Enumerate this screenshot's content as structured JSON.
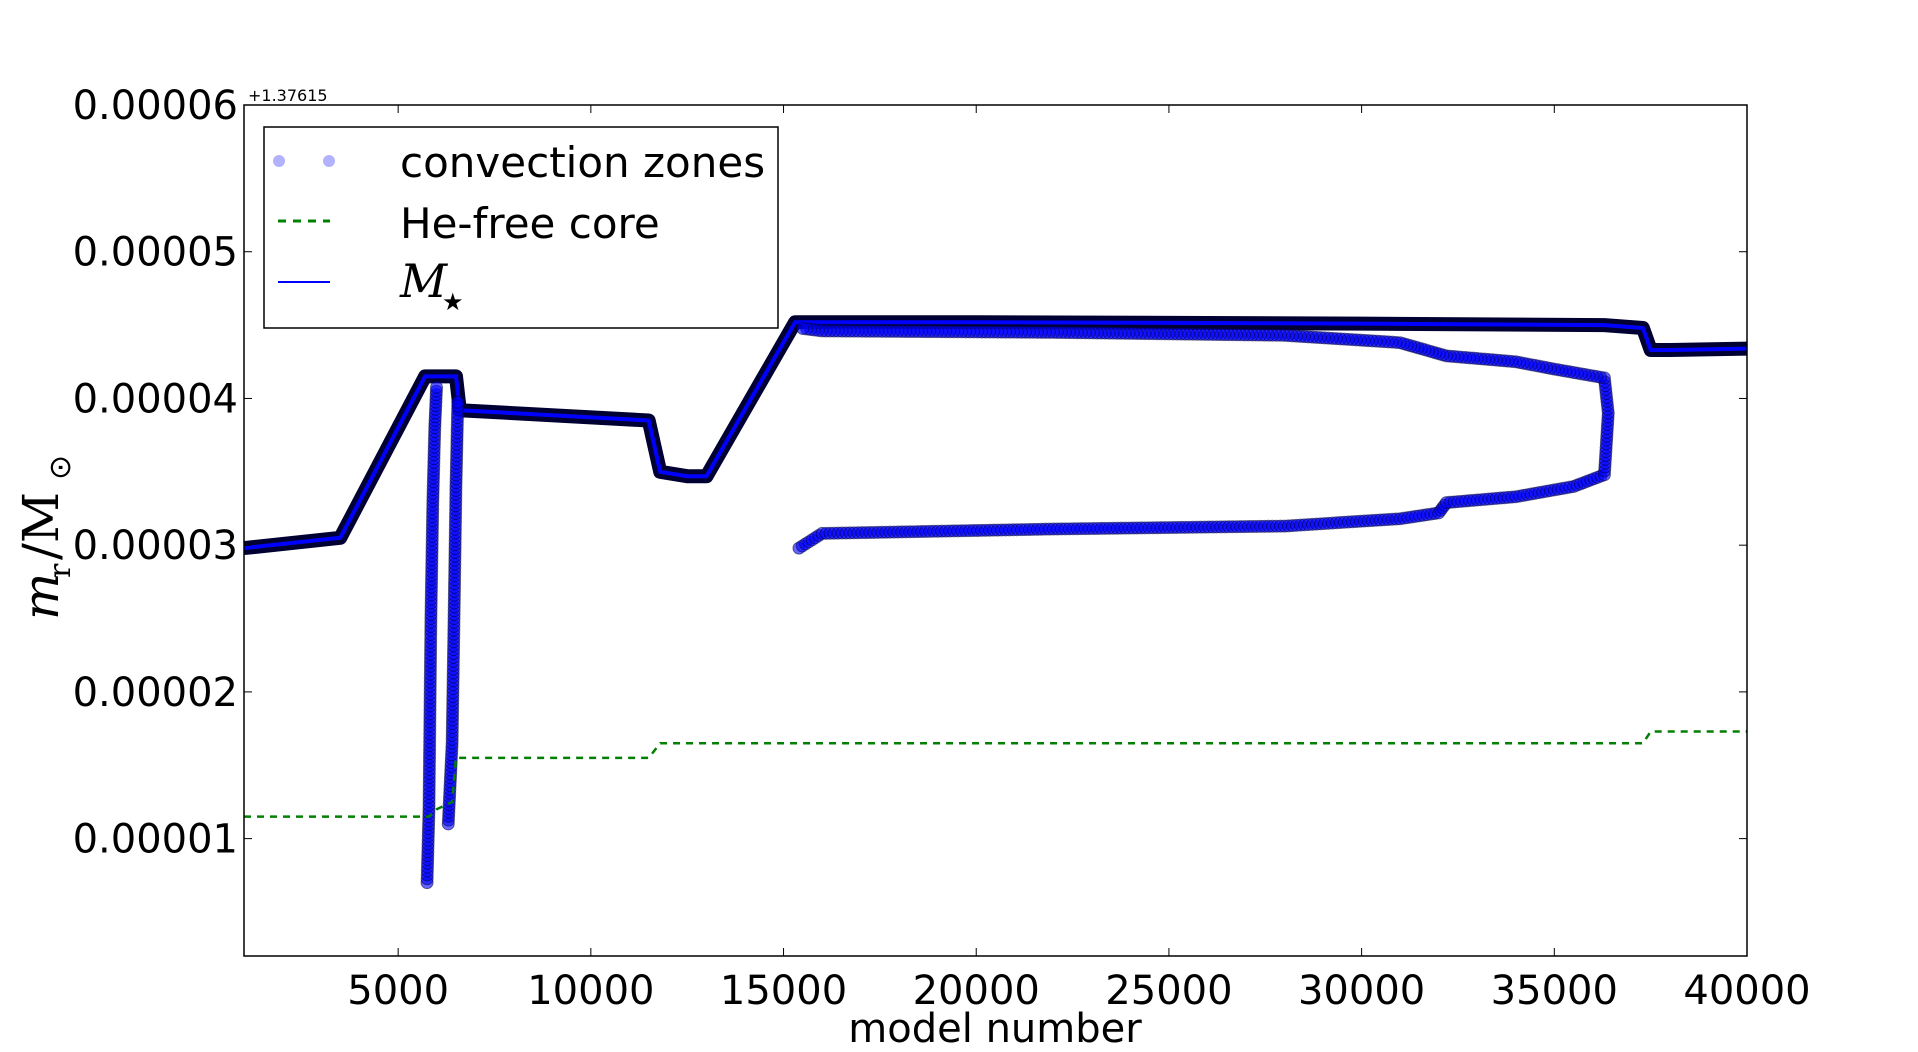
{
  "chart_data": {
    "type": "line",
    "title": "",
    "xlabel": "model number",
    "ylabel_main": "m",
    "ylabel_sub": "r",
    "ylabel_den": "/M",
    "ylabel_sun": "⊙",
    "offset_text": "+1.37615",
    "xlim": [
      1000,
      40000
    ],
    "ylim": [
      2e-06,
      6e-05
    ],
    "xticks": [
      5000,
      10000,
      15000,
      20000,
      25000,
      30000,
      35000,
      40000
    ],
    "xtick_labels": [
      "5000",
      "10000",
      "15000",
      "20000",
      "25000",
      "30000",
      "35000",
      "40000"
    ],
    "yticks": [
      1e-05,
      2e-05,
      3e-05,
      4e-05,
      5e-05,
      6e-05
    ],
    "ytick_labels": [
      "0.00001",
      "0.00002",
      "0.00003",
      "0.00004",
      "0.00005",
      "0.00006"
    ],
    "legend": {
      "placement": "top-left",
      "entries": [
        "convection zones",
        "He-free core",
        "M",
        "★"
      ]
    },
    "colors": {
      "conv": "#0000ff",
      "conv_edge": "#000033",
      "he": "#008000",
      "mstar": "#0000ff"
    },
    "series": [
      {
        "name": "M_star",
        "style": "solid",
        "x": [
          1000,
          3500,
          5700,
          6500,
          6600,
          11500,
          11800,
          12500,
          13000,
          15300,
          20000,
          30000,
          36300,
          37300,
          37500,
          38000,
          40000
        ],
        "y": [
          2.98e-05,
          3.05e-05,
          4.15e-05,
          4.15e-05,
          3.92e-05,
          3.85e-05,
          3.5e-05,
          3.47e-05,
          3.47e-05,
          4.52e-05,
          4.52e-05,
          4.51e-05,
          4.5e-05,
          4.48e-05,
          4.33e-05,
          4.33e-05,
          4.34e-05
        ]
      },
      {
        "name": "convection zones (outer boundary)",
        "style": "markers",
        "x": [
          15400,
          16000,
          22000,
          28000,
          31000,
          32000,
          32200,
          34000,
          35500,
          36300,
          36400,
          36300,
          35000,
          34000,
          32200,
          31000,
          28000,
          22000,
          16000,
          15400
        ],
        "y": [
          2.98e-05,
          3.08e-05,
          3.11e-05,
          3.13e-05,
          3.18e-05,
          3.22e-05,
          3.29e-05,
          3.33e-05,
          3.4e-05,
          3.48e-05,
          3.9e-05,
          4.14e-05,
          4.2e-05,
          4.25e-05,
          4.29e-05,
          4.38e-05,
          4.43e-05,
          4.45e-05,
          4.46e-05,
          4.48e-05
        ]
      },
      {
        "name": "convection zones (spike 1)",
        "style": "markers",
        "x": [
          5750,
          5800,
          5850,
          5900,
          5950,
          6000
        ],
        "y": [
          7e-06,
          1.2e-05,
          2.5e-05,
          3.3e-05,
          3.8e-05,
          4.1e-05
        ]
      },
      {
        "name": "convection zones (spike 2)",
        "style": "markers",
        "x": [
          6300,
          6400,
          6450,
          6500,
          6550
        ],
        "y": [
          1.1e-05,
          1.65e-05,
          2.5e-05,
          3.4e-05,
          4e-05
        ]
      },
      {
        "name": "He-free core",
        "style": "dashed",
        "x": [
          1000,
          5800,
          6000,
          6400,
          6500,
          11500,
          11800,
          37300,
          37500,
          40000
        ],
        "y": [
          1.15e-05,
          1.15e-05,
          1.2e-05,
          1.25e-05,
          1.55e-05,
          1.55e-05,
          1.65e-05,
          1.65e-05,
          1.73e-05,
          1.73e-05
        ]
      }
    ]
  }
}
